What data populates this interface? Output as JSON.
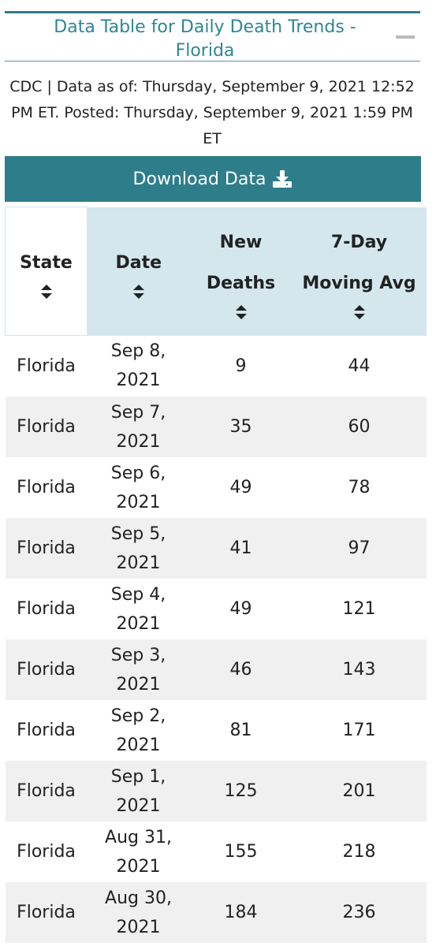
{
  "header": {
    "title": "Data Table for Daily Death Trends - Florida",
    "subtitle": "CDC | Data as of: Thursday, September 9, 2021 12:52 PM ET. Posted: Thursday, September 9, 2021 1:59 PM ET"
  },
  "button": {
    "label": "Download Data"
  },
  "table": {
    "columns": [
      "State",
      "Date",
      "New Deaths",
      "7-Day Moving Avg"
    ],
    "rows": [
      [
        "Florida",
        "Sep 8, 2021",
        9,
        44
      ],
      [
        "Florida",
        "Sep 7, 2021",
        35,
        60
      ],
      [
        "Florida",
        "Sep 6, 2021",
        49,
        78
      ],
      [
        "Florida",
        "Sep 5, 2021",
        41,
        97
      ],
      [
        "Florida",
        "Sep 4, 2021",
        49,
        121
      ],
      [
        "Florida",
        "Sep 3, 2021",
        46,
        143
      ],
      [
        "Florida",
        "Sep 2, 2021",
        81,
        171
      ],
      [
        "Florida",
        "Sep 1, 2021",
        125,
        201
      ],
      [
        "Florida",
        "Aug 31, 2021",
        155,
        218
      ],
      [
        "Florida",
        "Aug 30, 2021",
        184,
        236
      ]
    ]
  }
}
